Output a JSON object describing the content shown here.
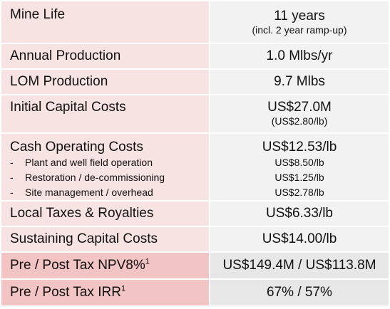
{
  "rows": [
    {
      "label": "Mine Life",
      "value": "11 years",
      "note": "(incl. 2 year ramp-up)"
    },
    {
      "label": "Annual Production",
      "value": "1.0 Mlbs/yr"
    },
    {
      "label": "LOM Production",
      "value": "9.7 Mlbs"
    },
    {
      "label": "Initial Capital Costs",
      "value": "US$27.0M",
      "note": "(US$2.80/lb)"
    },
    {
      "label": "Cash Operating Costs",
      "value": "US$12.53/lb",
      "sub_items": [
        {
          "dash": "-",
          "label": "Plant and well field operation",
          "value": "US$8.50/lb"
        },
        {
          "dash": "-",
          "label": "Restoration / de-commissioning",
          "value": "US$1.25/lb"
        },
        {
          "dash": "-",
          "label": "Site management / overhead",
          "value": "US$2.78/lb"
        }
      ]
    },
    {
      "label": "Local Taxes & Royalties",
      "value": "US$6.33/lb"
    },
    {
      "label": "Sustaining Capital Costs",
      "value": "US$14.00/lb"
    },
    {
      "label": "Pre / Post Tax NPV8%",
      "sup": "1",
      "value": "US$149.4M / US$113.8M"
    },
    {
      "label": "Pre / Post Tax IRR",
      "sup": "1",
      "value": "67% / 57%"
    }
  ]
}
